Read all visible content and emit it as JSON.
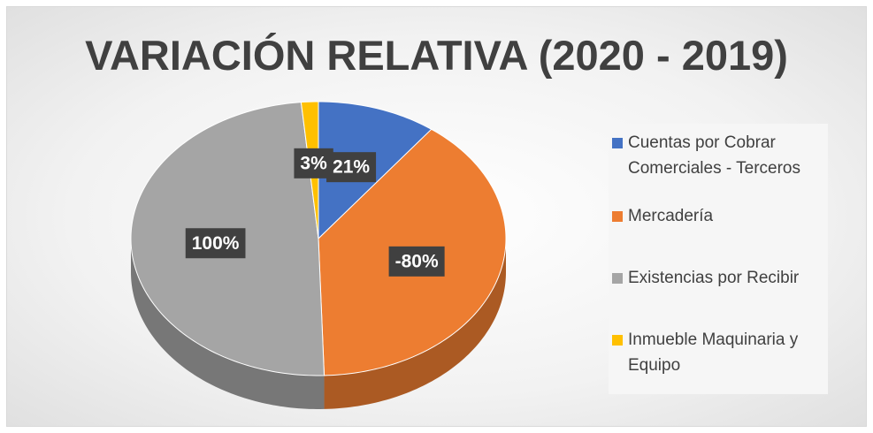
{
  "chart_data": {
    "type": "pie3d",
    "title": "VARIACIÓN RELATIVA (2020 - 2019)",
    "categories": [
      "Cuentas por Cobrar Comerciales - Terceros",
      "Mercadería",
      "Existencias por Recibir",
      "Inmueble Maquinaria y Equipo"
    ],
    "values": [
      21,
      -80,
      100,
      3
    ],
    "value_labels": [
      "21%",
      "-80%",
      "100%",
      "3%"
    ],
    "colors": [
      "#4472c4",
      "#ed7d31",
      "#a5a5a5",
      "#ffc000"
    ],
    "legend": "right"
  }
}
